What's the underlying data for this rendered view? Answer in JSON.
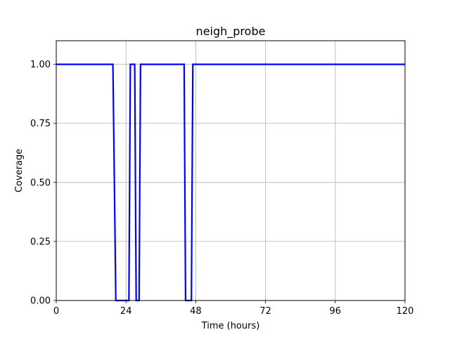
{
  "chart_data": {
    "type": "line",
    "title": "neigh_probe",
    "xlabel": "Time (hours)",
    "ylabel": "Coverage",
    "xlim": [
      0,
      120
    ],
    "ylim": [
      0,
      1.1
    ],
    "xticks": [
      0,
      24,
      48,
      72,
      96,
      120
    ],
    "xtick_labels": [
      "0",
      "24",
      "48",
      "72",
      "96",
      "120"
    ],
    "yticks": [
      0,
      0.25,
      0.5,
      0.75,
      1.0
    ],
    "ytick_labels": [
      "0.00",
      "0.25",
      "0.50",
      "0.75",
      "1.00"
    ],
    "grid": true,
    "series": [
      {
        "color": "#0000ff",
        "x": [
          0,
          19.5,
          20.5,
          25,
          25.5,
          27,
          27.5,
          28.5,
          29,
          44,
          44.5,
          46.5,
          47,
          120
        ],
        "y": [
          1,
          1,
          0,
          0,
          1,
          1,
          0,
          0,
          1,
          1,
          0,
          0,
          1,
          1
        ]
      }
    ]
  }
}
